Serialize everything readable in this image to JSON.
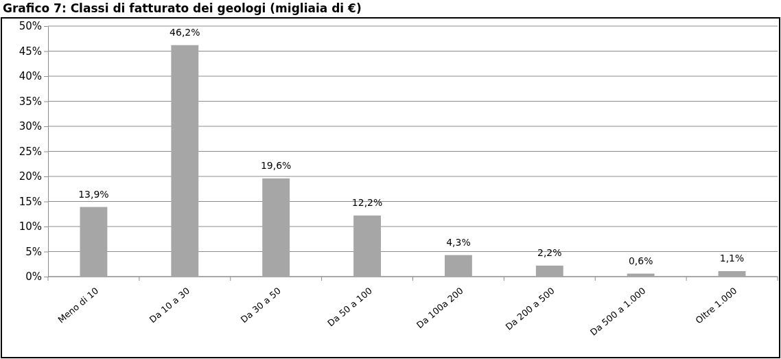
{
  "chart_data": {
    "type": "bar",
    "title": "Grafico 7: Classi di fatturato dei geologi (migliaia di €)",
    "categories": [
      "Meno di 10",
      "Da 10 a 30",
      "Da 30 a 50",
      "Da 50 a 100",
      "Da 100a 200",
      "Da 200 a 500",
      "Da 500 a 1.000",
      "Oltre 1.000"
    ],
    "values": [
      13.9,
      46.2,
      19.6,
      12.2,
      4.3,
      2.2,
      0.6,
      1.1
    ],
    "value_labels": [
      "13,9%",
      "46,2%",
      "19,6%",
      "12,2%",
      "4,3%",
      "2,2%",
      "0,6%",
      "1,1%"
    ],
    "color": "#a6a6a6",
    "ylim": [
      0,
      50
    ],
    "yticks": [
      {
        "value": 0,
        "label": "0%"
      },
      {
        "value": 5,
        "label": "5%"
      },
      {
        "value": 10,
        "label": "10%"
      },
      {
        "value": 15,
        "label": "15%"
      },
      {
        "value": 20,
        "label": "20%"
      },
      {
        "value": 25,
        "label": "25%"
      },
      {
        "value": 30,
        "label": "30%"
      },
      {
        "value": 35,
        "label": "35%"
      },
      {
        "value": 40,
        "label": "40%"
      },
      {
        "value": 45,
        "label": "45%"
      },
      {
        "value": 50,
        "label": "50%"
      }
    ],
    "grid": "y"
  }
}
